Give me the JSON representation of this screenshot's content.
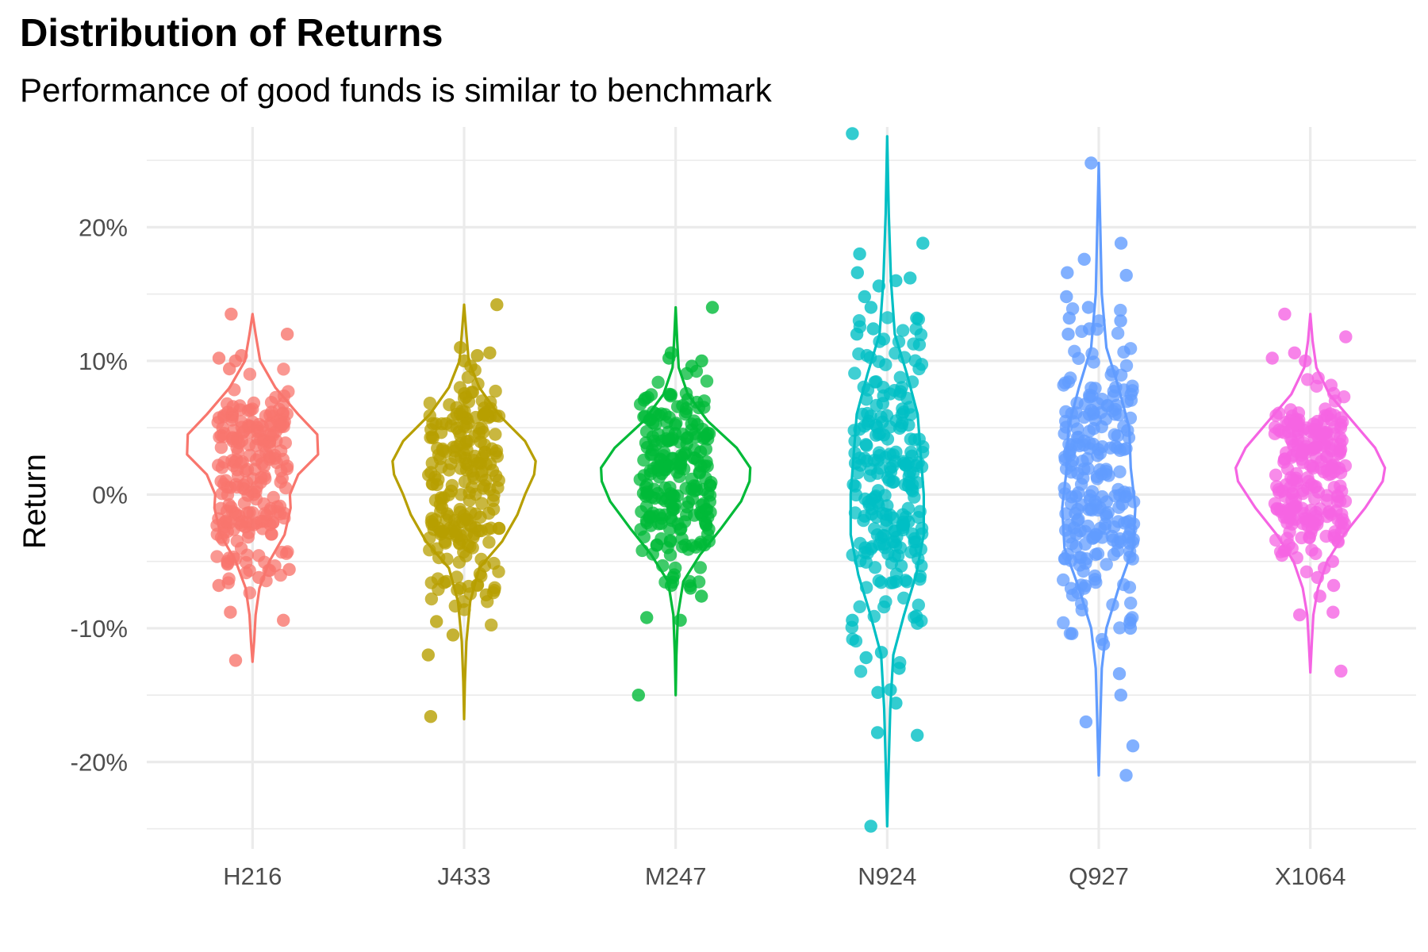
{
  "chart_data": {
    "type": "violin",
    "title": "Distribution of Returns",
    "subtitle": "Performance of good funds is similar to benchmark",
    "xlabel": "",
    "ylabel": "Return",
    "ylim": [
      -0.265,
      0.275
    ],
    "yticks": [
      -0.2,
      -0.1,
      0,
      0.1,
      0.2
    ],
    "ytick_labels": [
      "-20%",
      "-10%",
      "0%",
      "10%",
      "20%"
    ],
    "grid": true,
    "legend": "none",
    "categories": [
      "H216",
      "J433",
      "M247",
      "N924",
      "Q927",
      "X1064"
    ],
    "colors": [
      "#F8766D",
      "#B79F00",
      "#00BA38",
      "#00BFC4",
      "#619CFF",
      "#F564E3"
    ],
    "series": [
      {
        "category": "H216",
        "range": [
          -0.125,
          0.135
        ],
        "outliers": [
          0.135,
          0.12,
          0.104,
          0.102,
          0.1,
          0.094,
          -0.056,
          -0.062,
          -0.068,
          -0.088,
          -0.094,
          -0.124
        ],
        "summary": {
          "q1": -0.02,
          "median": 0.022,
          "q3": 0.05
        },
        "density": [
          {
            "y": -0.125,
            "w": 0.0
          },
          {
            "y": -0.11,
            "w": 0.02
          },
          {
            "y": -0.09,
            "w": 0.04
          },
          {
            "y": -0.07,
            "w": 0.09
          },
          {
            "y": -0.05,
            "w": 0.22
          },
          {
            "y": -0.03,
            "w": 0.42
          },
          {
            "y": -0.01,
            "w": 0.5
          },
          {
            "y": 0.0,
            "w": 0.49
          },
          {
            "y": 0.015,
            "w": 0.6
          },
          {
            "y": 0.03,
            "w": 0.86
          },
          {
            "y": 0.045,
            "w": 0.85
          },
          {
            "y": 0.06,
            "w": 0.6
          },
          {
            "y": 0.08,
            "w": 0.3
          },
          {
            "y": 0.1,
            "w": 0.1
          },
          {
            "y": 0.12,
            "w": 0.04
          },
          {
            "y": 0.135,
            "w": 0.0
          }
        ]
      },
      {
        "category": "J433",
        "range": [
          -0.168,
          0.142
        ],
        "outliers": [
          0.142,
          0.11,
          0.106,
          0.104,
          0.1,
          0.096,
          -0.065,
          -0.07,
          -0.075,
          -0.095,
          -0.105,
          -0.12,
          -0.166
        ],
        "summary": {
          "q1": -0.025,
          "median": 0.015,
          "q3": 0.045
        },
        "density": [
          {
            "y": -0.168,
            "w": 0.0
          },
          {
            "y": -0.14,
            "w": 0.01
          },
          {
            "y": -0.11,
            "w": 0.03
          },
          {
            "y": -0.08,
            "w": 0.08
          },
          {
            "y": -0.055,
            "w": 0.2
          },
          {
            "y": -0.035,
            "w": 0.5
          },
          {
            "y": -0.015,
            "w": 0.7
          },
          {
            "y": 0.0,
            "w": 0.8
          },
          {
            "y": 0.015,
            "w": 0.92
          },
          {
            "y": 0.025,
            "w": 0.94
          },
          {
            "y": 0.04,
            "w": 0.8
          },
          {
            "y": 0.06,
            "w": 0.45
          },
          {
            "y": 0.08,
            "w": 0.2
          },
          {
            "y": 0.1,
            "w": 0.06
          },
          {
            "y": 0.12,
            "w": 0.03
          },
          {
            "y": 0.142,
            "w": 0.0
          }
        ]
      },
      {
        "category": "M247",
        "range": [
          -0.15,
          0.14
        ],
        "outliers": [
          0.14,
          0.106,
          0.102,
          0.1,
          0.096,
          -0.062,
          -0.068,
          -0.07,
          -0.076,
          -0.092,
          -0.094,
          -0.15
        ],
        "summary": {
          "q1": -0.015,
          "median": 0.012,
          "q3": 0.04
        },
        "density": [
          {
            "y": -0.15,
            "w": 0.0
          },
          {
            "y": -0.12,
            "w": 0.01
          },
          {
            "y": -0.09,
            "w": 0.03
          },
          {
            "y": -0.065,
            "w": 0.1
          },
          {
            "y": -0.045,
            "w": 0.32
          },
          {
            "y": -0.025,
            "w": 0.6
          },
          {
            "y": -0.005,
            "w": 0.86
          },
          {
            "y": 0.01,
            "w": 0.97
          },
          {
            "y": 0.02,
            "w": 0.98
          },
          {
            "y": 0.035,
            "w": 0.8
          },
          {
            "y": 0.055,
            "w": 0.42
          },
          {
            "y": 0.075,
            "w": 0.16
          },
          {
            "y": 0.095,
            "w": 0.04
          },
          {
            "y": 0.115,
            "w": 0.02
          },
          {
            "y": 0.14,
            "w": 0.0
          }
        ]
      },
      {
        "category": "N924",
        "range": [
          -0.248,
          0.268
        ],
        "outliers": [
          0.27,
          0.188,
          0.18,
          0.166,
          0.162,
          0.16,
          0.156,
          0.148,
          0.14,
          0.132,
          0.124,
          0.12,
          -0.094,
          -0.118,
          -0.122,
          -0.13,
          -0.146,
          -0.148,
          -0.156,
          -0.178,
          -0.18,
          -0.248
        ],
        "summary": {
          "q1": -0.035,
          "median": 0.01,
          "q3": 0.055
        },
        "density": [
          {
            "y": -0.248,
            "w": 0.0
          },
          {
            "y": -0.2,
            "w": 0.02
          },
          {
            "y": -0.16,
            "w": 0.04
          },
          {
            "y": -0.12,
            "w": 0.08
          },
          {
            "y": -0.09,
            "w": 0.22
          },
          {
            "y": -0.06,
            "w": 0.38
          },
          {
            "y": -0.03,
            "w": 0.48
          },
          {
            "y": 0.0,
            "w": 0.48
          },
          {
            "y": 0.03,
            "w": 0.44
          },
          {
            "y": 0.06,
            "w": 0.4
          },
          {
            "y": 0.09,
            "w": 0.26
          },
          {
            "y": 0.12,
            "w": 0.1
          },
          {
            "y": 0.16,
            "w": 0.05
          },
          {
            "y": 0.21,
            "w": 0.02
          },
          {
            "y": 0.268,
            "w": 0.0
          }
        ]
      },
      {
        "category": "Q927",
        "range": [
          -0.21,
          0.248
        ],
        "outliers": [
          0.248,
          0.188,
          0.176,
          0.166,
          0.164,
          0.148,
          0.14,
          0.132,
          0.13,
          0.124,
          0.12,
          -0.096,
          -0.1,
          -0.104,
          -0.112,
          -0.134,
          -0.15,
          -0.17,
          -0.188,
          -0.21
        ],
        "summary": {
          "q1": -0.03,
          "median": 0.015,
          "q3": 0.06
        },
        "density": [
          {
            "y": -0.21,
            "w": 0.0
          },
          {
            "y": -0.17,
            "w": 0.02
          },
          {
            "y": -0.13,
            "w": 0.04
          },
          {
            "y": -0.1,
            "w": 0.1
          },
          {
            "y": -0.07,
            "w": 0.26
          },
          {
            "y": -0.04,
            "w": 0.45
          },
          {
            "y": -0.01,
            "w": 0.48
          },
          {
            "y": 0.02,
            "w": 0.42
          },
          {
            "y": 0.05,
            "w": 0.4
          },
          {
            "y": 0.08,
            "w": 0.26
          },
          {
            "y": 0.11,
            "w": 0.1
          },
          {
            "y": 0.15,
            "w": 0.04
          },
          {
            "y": 0.2,
            "w": 0.02
          },
          {
            "y": 0.248,
            "w": 0.0
          }
        ]
      },
      {
        "category": "X1064",
        "range": [
          -0.133,
          0.135
        ],
        "outliers": [
          0.135,
          0.118,
          0.106,
          0.102,
          0.1,
          -0.05,
          -0.055,
          -0.062,
          -0.068,
          -0.076,
          -0.088,
          -0.09,
          -0.132
        ],
        "summary": {
          "q1": -0.01,
          "median": 0.02,
          "q3": 0.045
        },
        "density": [
          {
            "y": -0.133,
            "w": 0.0
          },
          {
            "y": -0.11,
            "w": 0.02
          },
          {
            "y": -0.09,
            "w": 0.04
          },
          {
            "y": -0.07,
            "w": 0.1
          },
          {
            "y": -0.05,
            "w": 0.22
          },
          {
            "y": -0.03,
            "w": 0.44
          },
          {
            "y": -0.01,
            "w": 0.72
          },
          {
            "y": 0.01,
            "w": 0.95
          },
          {
            "y": 0.02,
            "w": 0.98
          },
          {
            "y": 0.035,
            "w": 0.85
          },
          {
            "y": 0.055,
            "w": 0.55
          },
          {
            "y": 0.075,
            "w": 0.25
          },
          {
            "y": 0.095,
            "w": 0.08
          },
          {
            "y": 0.115,
            "w": 0.03
          },
          {
            "y": 0.135,
            "w": 0.0
          }
        ]
      }
    ]
  }
}
